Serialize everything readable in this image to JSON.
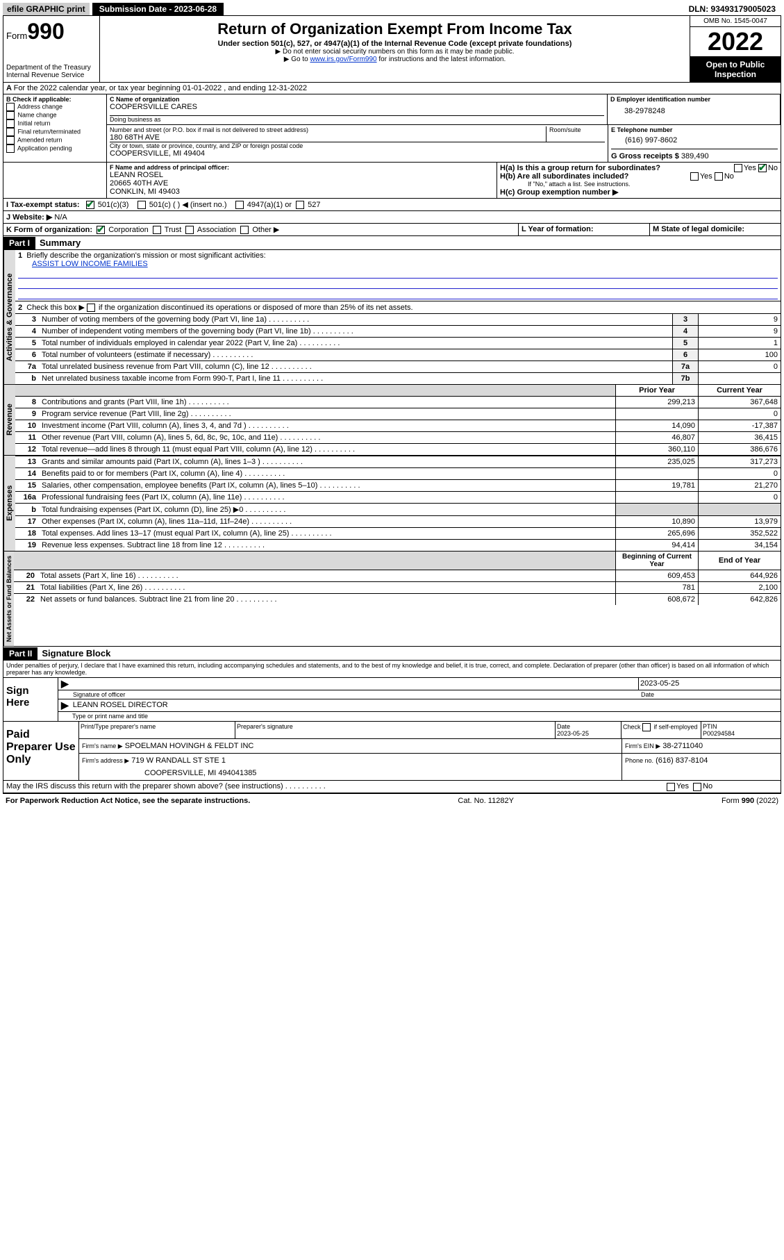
{
  "top": {
    "efile": "efile GRAPHIC print",
    "submission_label": "Submission Date - 2023-06-28",
    "dln": "DLN: 93493179005023"
  },
  "header": {
    "form_label": "Form",
    "form_number": "990",
    "dept": "Department of the Treasury Internal Revenue Service",
    "title": "Return of Organization Exempt From Income Tax",
    "subtitle": "Under section 501(c), 527, or 4947(a)(1) of the Internal Revenue Code (except private foundations)",
    "note1": "▶ Do not enter social security numbers on this form as it may be made public.",
    "note2_pre": "▶ Go to ",
    "note2_link": "www.irs.gov/Form990",
    "note2_post": " for instructions and the latest information.",
    "omb": "OMB No. 1545-0047",
    "year": "2022",
    "open": "Open to Public Inspection"
  },
  "A": {
    "text": "For the 2022 calendar year, or tax year beginning 01-01-2022   , and ending 12-31-2022"
  },
  "B": {
    "label": "B Check if applicable:",
    "opts": [
      "Address change",
      "Name change",
      "Initial return",
      "Final return/terminated",
      "Amended return",
      "Application pending"
    ]
  },
  "C": {
    "name_label": "C Name of organization",
    "name": "COOPERSVILLE CARES",
    "dba_label": "Doing business as",
    "street_label": "Number and street (or P.O. box if mail is not delivered to street address)",
    "room_label": "Room/suite",
    "street": "180 68TH AVE",
    "city_label": "City or town, state or province, country, and ZIP or foreign postal code",
    "city": "COOPERSVILLE, MI  49404"
  },
  "D": {
    "label": "D Employer identification number",
    "value": "38-2978248"
  },
  "E": {
    "label": "E Telephone number",
    "value": "(616) 997-8602"
  },
  "G": {
    "label": "G Gross receipts $",
    "value": "389,490"
  },
  "F": {
    "label": "F Name and address of principal officer:",
    "name": "LEANN ROSEL",
    "addr1": "20665 40TH AVE",
    "addr2": "CONKLIN, MI  49403"
  },
  "H": {
    "a": "H(a)  Is this a group return for subordinates?",
    "b": "H(b)  Are all subordinates included?",
    "b_note": "If \"No,\" attach a list. See instructions.",
    "c": "H(c)  Group exemption number ▶",
    "yes": "Yes",
    "no": "No"
  },
  "I": {
    "label": "I   Tax-exempt status:",
    "o1": "501(c)(3)",
    "o2": "501(c) (   ) ◀ (insert no.)",
    "o3": "4947(a)(1) or",
    "o4": "527"
  },
  "J": {
    "label": "J   Website: ▶",
    "value": "N/A"
  },
  "K": {
    "label": "K Form of organization:",
    "opts": [
      "Corporation",
      "Trust",
      "Association",
      "Other ▶"
    ]
  },
  "L": {
    "label": "L Year of formation:"
  },
  "M": {
    "label": "M State of legal domicile:"
  },
  "part1": {
    "header": "Part I",
    "title": "Summary",
    "l1": "Briefly describe the organization's mission or most significant activities:",
    "l1v": "ASSIST LOW INCOME FAMILIES",
    "l2": "Check this box ▶       if the organization discontinued its operations or disposed of more than 25% of its net assets.",
    "lines_gov": [
      {
        "n": "3",
        "t": "Number of voting members of the governing body (Part VI, line 1a)",
        "c": "3",
        "v": "9"
      },
      {
        "n": "4",
        "t": "Number of independent voting members of the governing body (Part VI, line 1b)",
        "c": "4",
        "v": "9"
      },
      {
        "n": "5",
        "t": "Total number of individuals employed in calendar year 2022 (Part V, line 2a)",
        "c": "5",
        "v": "1"
      },
      {
        "n": "6",
        "t": "Total number of volunteers (estimate if necessary)",
        "c": "6",
        "v": "100"
      },
      {
        "n": "7a",
        "t": "Total unrelated business revenue from Part VIII, column (C), line 12",
        "c": "7a",
        "v": "0"
      },
      {
        "n": "b",
        "t": "Net unrelated business taxable income from Form 990-T, Part I, line 11",
        "c": "7b",
        "v": ""
      }
    ],
    "col_prior": "Prior Year",
    "col_current": "Current Year",
    "lines_rev": [
      {
        "n": "8",
        "t": "Contributions and grants (Part VIII, line 1h)",
        "p": "299,213",
        "c": "367,648"
      },
      {
        "n": "9",
        "t": "Program service revenue (Part VIII, line 2g)",
        "p": "",
        "c": "0"
      },
      {
        "n": "10",
        "t": "Investment income (Part VIII, column (A), lines 3, 4, and 7d )",
        "p": "14,090",
        "c": "-17,387"
      },
      {
        "n": "11",
        "t": "Other revenue (Part VIII, column (A), lines 5, 6d, 8c, 9c, 10c, and 11e)",
        "p": "46,807",
        "c": "36,415"
      },
      {
        "n": "12",
        "t": "Total revenue—add lines 8 through 11 (must equal Part VIII, column (A), line 12)",
        "p": "360,110",
        "c": "386,676"
      }
    ],
    "lines_exp": [
      {
        "n": "13",
        "t": "Grants and similar amounts paid (Part IX, column (A), lines 1–3 )",
        "p": "235,025",
        "c": "317,273"
      },
      {
        "n": "14",
        "t": "Benefits paid to or for members (Part IX, column (A), line 4)",
        "p": "",
        "c": "0"
      },
      {
        "n": "15",
        "t": "Salaries, other compensation, employee benefits (Part IX, column (A), lines 5–10)",
        "p": "19,781",
        "c": "21,270"
      },
      {
        "n": "16a",
        "t": "Professional fundraising fees (Part IX, column (A), line 11e)",
        "p": "",
        "c": "0"
      },
      {
        "n": "b",
        "t": "Total fundraising expenses (Part IX, column (D), line 25) ▶0",
        "p": "GREY",
        "c": "GREY"
      },
      {
        "n": "17",
        "t": "Other expenses (Part IX, column (A), lines 11a–11d, 11f–24e)",
        "p": "10,890",
        "c": "13,979"
      },
      {
        "n": "18",
        "t": "Total expenses. Add lines 13–17 (must equal Part IX, column (A), line 25)",
        "p": "265,696",
        "c": "352,522"
      },
      {
        "n": "19",
        "t": "Revenue less expenses. Subtract line 18 from line 12",
        "p": "94,414",
        "c": "34,154"
      }
    ],
    "col_begin": "Beginning of Current Year",
    "col_end": "End of Year",
    "lines_net": [
      {
        "n": "20",
        "t": "Total assets (Part X, line 16)",
        "p": "609,453",
        "c": "644,926"
      },
      {
        "n": "21",
        "t": "Total liabilities (Part X, line 26)",
        "p": "781",
        "c": "2,100"
      },
      {
        "n": "22",
        "t": "Net assets or fund balances. Subtract line 21 from line 20",
        "p": "608,672",
        "c": "642,826"
      }
    ],
    "tab_gov": "Activities & Governance",
    "tab_rev": "Revenue",
    "tab_exp": "Expenses",
    "tab_net": "Net Assets or Fund Balances"
  },
  "part2": {
    "header": "Part II",
    "title": "Signature Block",
    "declaration": "Under penalties of perjury, I declare that I have examined this return, including accompanying schedules and statements, and to the best of my knowledge and belief, it is true, correct, and complete. Declaration of preparer (other than officer) is based on all information of which preparer has any knowledge.",
    "sign_here": "Sign Here",
    "sig_officer": "Signature of officer",
    "sig_date": "2023-05-25",
    "date_label": "Date",
    "typed_name": "LEANN ROSEL  DIRECTOR",
    "typed_label": "Type or print name and title",
    "paid_preparer": "Paid Preparer Use Only",
    "pp_name_label": "Print/Type preparer's name",
    "pp_sig_label": "Preparer's signature",
    "pp_date_label": "Date",
    "pp_date": "2023-05-25",
    "pp_check": "Check       if self-employed",
    "pp_ptin_label": "PTIN",
    "pp_ptin": "P00294584",
    "firm_name_label": "Firm's name    ▶",
    "firm_name": "SPOELMAN HOVINGH & FELDT INC",
    "firm_ein_label": "Firm's EIN ▶",
    "firm_ein": "38-2711040",
    "firm_addr_label": "Firm's address ▶",
    "firm_addr1": "719 W RANDALL ST STE 1",
    "firm_addr2": "COOPERSVILLE, MI  494041385",
    "phone_label": "Phone no.",
    "phone": "(616) 837-8104",
    "discuss": "May the IRS discuss this return with the preparer shown above? (see instructions)"
  },
  "footer": {
    "left": "For Paperwork Reduction Act Notice, see the separate instructions.",
    "mid": "Cat. No. 11282Y",
    "right": "Form 990 (2022)"
  }
}
